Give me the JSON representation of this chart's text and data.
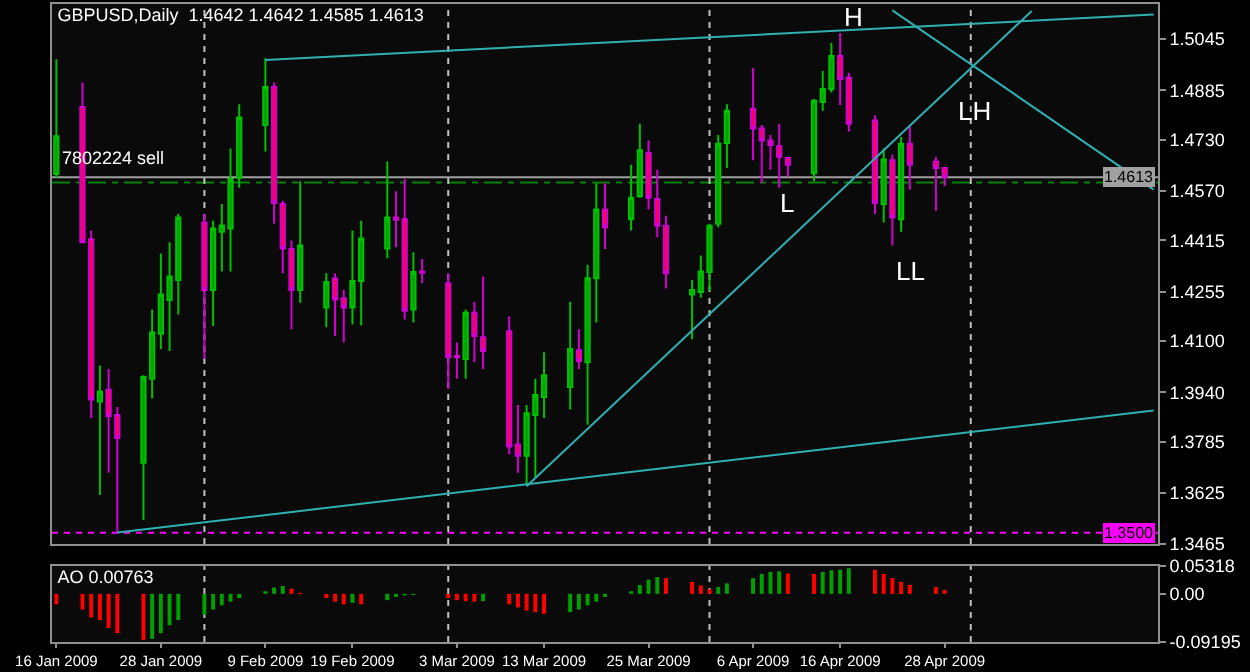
{
  "chart_data": [
    {
      "type": "candlestick",
      "title": "GBPUSD,Daily  1.4642 1.4642 1.4585 1.4613",
      "x": [
        "2009-01-16",
        "2009-01-19",
        "2009-01-20",
        "2009-01-21",
        "2009-01-22",
        "2009-01-23",
        "2009-01-26",
        "2009-01-27",
        "2009-01-28",
        "2009-01-29",
        "2009-01-30",
        "2009-02-02",
        "2009-02-03",
        "2009-02-04",
        "2009-02-05",
        "2009-02-06",
        "2009-02-09",
        "2009-02-10",
        "2009-02-11",
        "2009-02-12",
        "2009-02-13",
        "2009-02-16",
        "2009-02-17",
        "2009-02-18",
        "2009-02-19",
        "2009-02-20",
        "2009-02-23",
        "2009-02-24",
        "2009-02-25",
        "2009-02-26",
        "2009-02-27",
        "2009-03-02",
        "2009-03-03",
        "2009-03-04",
        "2009-03-05",
        "2009-03-06",
        "2009-03-09",
        "2009-03-10",
        "2009-03-11",
        "2009-03-12",
        "2009-03-13",
        "2009-03-16",
        "2009-03-17",
        "2009-03-18",
        "2009-03-19",
        "2009-03-20",
        "2009-03-23",
        "2009-03-24",
        "2009-03-25",
        "2009-03-26",
        "2009-03-27",
        "2009-03-30",
        "2009-03-31",
        "2009-04-01",
        "2009-04-02",
        "2009-04-03",
        "2009-04-06",
        "2009-04-07",
        "2009-04-08",
        "2009-04-09",
        "2009-04-10",
        "2009-04-13",
        "2009-04-14",
        "2009-04-15",
        "2009-04-16",
        "2009-04-17",
        "2009-04-20",
        "2009-04-21",
        "2009-04-22",
        "2009-04-23",
        "2009-04-24",
        "2009-04-27",
        "2009-04-28"
      ],
      "ohlc": [
        [
          1.4623,
          1.4982,
          1.4611,
          1.4741
        ],
        [
          1.4833,
          1.4909,
          1.4407,
          1.4409
        ],
        [
          1.4419,
          1.4446,
          1.3859,
          1.3917
        ],
        [
          1.3911,
          1.4024,
          1.3618,
          1.3942
        ],
        [
          1.3948,
          1.4013,
          1.3688,
          1.3865
        ],
        [
          1.3869,
          1.3894,
          1.3503,
          1.3797
        ],
        [
          1.3719,
          1.3993,
          1.354,
          1.3988
        ],
        [
          1.3982,
          1.4199,
          1.392,
          1.4127
        ],
        [
          1.4123,
          1.4374,
          1.4075,
          1.4246
        ],
        [
          1.4229,
          1.4409,
          1.4069,
          1.4302
        ],
        [
          1.4291,
          1.4498,
          1.4183,
          1.4487
        ],
        [
          1.4471,
          1.4498,
          1.4044,
          1.426
        ],
        [
          1.426,
          1.4477,
          1.4147,
          1.4452
        ],
        [
          1.4442,
          1.4529,
          1.4318,
          1.4462
        ],
        [
          1.4452,
          1.4703,
          1.4318,
          1.4607
        ],
        [
          1.4611,
          1.4841,
          1.458,
          1.48
        ],
        [
          1.4776,
          1.4986,
          1.4693,
          1.4895
        ],
        [
          1.4895,
          1.4909,
          1.4467,
          1.4532
        ],
        [
          1.4529,
          1.4539,
          1.4312,
          1.439
        ],
        [
          1.4388,
          1.4415,
          1.4137,
          1.426
        ],
        [
          1.426,
          1.46,
          1.422,
          1.4399
        ],
        [
          1.4205,
          1.4312,
          1.4143,
          1.4285
        ],
        [
          1.4296,
          1.4312,
          1.4116,
          1.423
        ],
        [
          1.4234,
          1.426,
          1.4096,
          1.4205
        ],
        [
          1.4205,
          1.4446,
          1.4152,
          1.4288
        ],
        [
          1.4288,
          1.4477,
          1.4149,
          1.4421
        ],
        [
          1.439,
          1.4662,
          1.4359,
          1.4487
        ],
        [
          1.4487,
          1.4569,
          1.4394,
          1.448
        ],
        [
          1.4481,
          1.4607,
          1.4168,
          1.4195
        ],
        [
          1.4199,
          1.4378,
          1.4158,
          1.4316
        ],
        [
          1.4318,
          1.4357,
          1.4281,
          1.4314
        ],
        [
          1.4281,
          1.4312,
          1.3951,
          1.405
        ],
        [
          1.4053,
          1.4096,
          1.3982,
          1.405
        ],
        [
          1.4044,
          1.4199,
          1.3982,
          1.4189
        ],
        [
          1.4189,
          1.4223,
          1.4034,
          1.4116
        ],
        [
          1.4112,
          1.4302,
          1.4013,
          1.4069
        ],
        [
          1.4131,
          1.4178,
          1.3746,
          1.377
        ],
        [
          1.3776,
          1.39,
          1.3688,
          1.3741
        ],
        [
          1.3741,
          1.39,
          1.3647,
          1.3874
        ],
        [
          1.3869,
          1.3982,
          1.3673,
          1.3931
        ],
        [
          1.3925,
          1.4065,
          1.3859,
          1.3993
        ],
        [
          1.3956,
          1.4223,
          1.3886,
          1.4075
        ],
        [
          1.4071,
          1.4137,
          1.4013,
          1.4038
        ],
        [
          1.4034,
          1.4339,
          1.3838,
          1.4297
        ],
        [
          1.4297,
          1.4594,
          1.4158,
          1.4512
        ],
        [
          1.4512,
          1.4594,
          1.4388,
          1.4456
        ],
        [
          1.4481,
          1.4652,
          1.4446,
          1.4549
        ],
        [
          1.4553,
          1.478,
          1.4549,
          1.4697
        ],
        [
          1.4689,
          1.4728,
          1.4512,
          1.4549
        ],
        [
          1.4545,
          1.4636,
          1.4425,
          1.4461
        ],
        [
          1.4461,
          1.4492,
          1.4265,
          1.4312
        ],
        [
          1.4246,
          1.4291,
          1.4106,
          1.426
        ],
        [
          1.4254,
          1.4368,
          1.4236,
          1.4318
        ],
        [
          1.4316,
          1.4467,
          1.4257,
          1.4461
        ],
        [
          1.4467,
          1.4745,
          1.4456,
          1.4718
        ],
        [
          1.472,
          1.4841,
          1.4642,
          1.4821
        ],
        [
          1.4827,
          1.4955,
          1.4666,
          1.4765
        ],
        [
          1.4765,
          1.4776,
          1.4594,
          1.4728
        ],
        [
          1.4728,
          1.4745,
          1.4636,
          1.4714
        ],
        [
          1.471,
          1.478,
          1.458,
          1.4677
        ],
        [
          1.4673,
          1.4677,
          1.4615,
          1.4652
        ],
        [
          1.4625,
          1.4858,
          1.46,
          1.4852
        ],
        [
          1.4848,
          1.4945,
          1.4821,
          1.4889
        ],
        [
          1.4889,
          1.5033,
          1.4878,
          1.4992
        ],
        [
          1.4992,
          1.5064,
          1.4838,
          1.492
        ],
        [
          1.4924,
          1.494,
          1.4755,
          1.478
        ],
        [
          1.479,
          1.4807,
          1.4498,
          1.4532
        ],
        [
          1.4529,
          1.4703,
          1.4471,
          1.4668
        ],
        [
          1.4666,
          1.4683,
          1.4399,
          1.4487
        ],
        [
          1.4481,
          1.4739,
          1.4442,
          1.4718
        ],
        [
          1.4718,
          1.4776,
          1.4574,
          1.4652
        ],
        [
          1.4662,
          1.4677,
          1.4508,
          1.4642
        ],
        [
          1.4642,
          1.4642,
          1.4585,
          1.4613
        ]
      ],
      "series": [
        {
          "type": "line",
          "color": "#30b0b0",
          "x": [
            "2009-02-09",
            "2009-05-22"
          ],
          "values": [
            1.498,
            1.5122
          ]
        },
        {
          "type": "line",
          "color": "#30b0b0",
          "x": [
            "2009-01-23",
            "2009-05-22"
          ],
          "values": [
            1.3501,
            1.3883
          ]
        },
        {
          "type": "line",
          "color": "#30b0b0",
          "x": [
            "2009-03-11",
            "2009-05-08"
          ],
          "values": [
            1.3646,
            1.5133
          ]
        },
        {
          "type": "line",
          "color": "#30b0b0",
          "x": [
            "2009-04-22",
            "2009-05-22"
          ],
          "values": [
            1.5135,
            1.4574
          ]
        }
      ],
      "xlim": [
        "2009-01-15T12:00",
        "2009-05-22T12:00"
      ],
      "ylim": [
        1.3465,
        1.5155
      ],
      "yticks": [
        1.5045,
        1.4885,
        {
          "value": 1.473,
          "label": "1.4730"
        },
        {
          "value": 1.457,
          "label": "1.4570"
        },
        1.4415,
        1.4255,
        {
          "value": 1.41,
          "label": "1.4100"
        },
        {
          "value": 1.394,
          "label": "1.3940"
        },
        1.3785,
        1.3625,
        1.3465
      ],
      "tick_labels": "y",
      "ref_lines": [
        {
          "axis": "y",
          "value": 1.4613,
          "label": "1.4613",
          "color": "#a0a0a0",
          "line_style": "solid"
        },
        {
          "axis": "y",
          "value": 1.4596,
          "label": "7802224 sell",
          "color": "#008000",
          "line_style": "dashed"
        },
        {
          "axis": "y",
          "value": 1.35,
          "label": "1.3500",
          "color": "#ff00ff",
          "line_style": "dotted"
        },
        {
          "axis": "x",
          "value": "2009-02-02",
          "color": "#c0c0c0",
          "line_style": "dotted"
        },
        {
          "axis": "x",
          "value": "2009-03-02",
          "color": "#c0c0c0",
          "line_style": "dotted"
        },
        {
          "axis": "x",
          "value": "2009-04-01",
          "color": "#c0c0c0",
          "line_style": "dotted"
        },
        {
          "axis": "x",
          "value": "2009-05-01",
          "color": "#c0c0c0",
          "line_style": "dotted"
        }
      ],
      "annotations": [
        "H",
        "L",
        "LH",
        "LL"
      ]
    },
    {
      "type": "bar",
      "title": "AO 0.00763",
      "x": [
        "2009-01-16",
        "2009-01-19",
        "2009-01-20",
        "2009-01-21",
        "2009-01-22",
        "2009-01-23",
        "2009-01-26",
        "2009-01-27",
        "2009-01-28",
        "2009-01-29",
        "2009-01-30",
        "2009-02-02",
        "2009-02-03",
        "2009-02-04",
        "2009-02-05",
        "2009-02-06",
        "2009-02-09",
        "2009-02-10",
        "2009-02-11",
        "2009-02-12",
        "2009-02-13",
        "2009-02-16",
        "2009-02-17",
        "2009-02-18",
        "2009-02-19",
        "2009-02-20",
        "2009-02-23",
        "2009-02-24",
        "2009-02-25",
        "2009-02-26",
        "2009-02-27",
        "2009-03-02",
        "2009-03-03",
        "2009-03-04",
        "2009-03-05",
        "2009-03-06",
        "2009-03-09",
        "2009-03-10",
        "2009-03-11",
        "2009-03-12",
        "2009-03-13",
        "2009-03-16",
        "2009-03-17",
        "2009-03-18",
        "2009-03-19",
        "2009-03-20",
        "2009-03-23",
        "2009-03-24",
        "2009-03-25",
        "2009-03-26",
        "2009-03-27",
        "2009-03-30",
        "2009-03-31",
        "2009-04-01",
        "2009-04-02",
        "2009-04-03",
        "2009-04-06",
        "2009-04-07",
        "2009-04-08",
        "2009-04-09",
        "2009-04-10",
        "2009-04-13",
        "2009-04-14",
        "2009-04-15",
        "2009-04-16",
        "2009-04-17",
        "2009-04-20",
        "2009-04-21",
        "2009-04-22",
        "2009-04-23",
        "2009-04-24",
        "2009-04-27",
        "2009-04-28"
      ],
      "values": [
        -0.02,
        -0.03,
        -0.045,
        -0.05,
        -0.065,
        -0.075,
        -0.088,
        -0.086,
        -0.075,
        -0.06,
        -0.05,
        -0.04,
        -0.03,
        -0.022,
        -0.015,
        -0.008,
        0.005,
        0.012,
        0.015,
        0.01,
        0.002,
        -0.008,
        -0.015,
        -0.02,
        -0.017,
        -0.02,
        -0.012,
        -0.006,
        -0.003,
        -0.002,
        null,
        -0.008,
        -0.012,
        -0.014,
        -0.015,
        -0.014,
        -0.02,
        -0.026,
        -0.032,
        -0.035,
        -0.038,
        -0.035,
        -0.03,
        -0.022,
        -0.015,
        -0.006,
        0.005,
        0.017,
        0.027,
        0.032,
        0.03,
        0.023,
        0.016,
        0.009,
        0.013,
        0.02,
        0.03,
        0.038,
        0.042,
        0.043,
        0.039,
        0.038,
        0.042,
        0.045,
        0.046,
        0.049,
        0.046,
        0.038,
        0.03,
        0.023,
        0.017,
        0.013,
        0.00763
      ],
      "colors": [
        "#ff0000",
        "#ff0000",
        "#ff0000",
        "#ff0000",
        "#ff0000",
        "#ff0000",
        "#ff0000",
        "#00a000",
        "#00a000",
        "#00a000",
        "#00a000",
        "#00a000",
        "#00a000",
        "#00a000",
        "#00a000",
        "#00a000",
        "#00a000",
        "#00a000",
        "#00a000",
        "#ff0000",
        "#ff0000",
        "#ff0000",
        "#ff0000",
        "#ff0000",
        "#00a000",
        "#ff0000",
        "#00a000",
        "#00a000",
        "#00a000",
        "#00a000",
        "#00a000",
        "#ff0000",
        "#ff0000",
        "#ff0000",
        "#ff0000",
        "#00a000",
        "#ff0000",
        "#ff0000",
        "#ff0000",
        "#ff0000",
        "#ff0000",
        "#00a000",
        "#00a000",
        "#00a000",
        "#00a000",
        "#00a000",
        "#00a000",
        "#00a000",
        "#00a000",
        "#00a000",
        "#ff0000",
        "#ff0000",
        "#ff0000",
        "#ff0000",
        "#00a000",
        "#00a000",
        "#00a000",
        "#00a000",
        "#00a000",
        "#00a000",
        "#ff0000",
        "#ff0000",
        "#00a000",
        "#00a000",
        "#00a000",
        "#00a000",
        "#ff0000",
        "#ff0000",
        "#ff0000",
        "#ff0000",
        "#ff0000",
        "#ff0000",
        "#ff0000"
      ],
      "xlim": [
        "2009-01-15T12:00",
        "2009-05-22T12:00"
      ],
      "xticks": [
        {
          "value": "2009-01-16",
          "label": "16 Jan 2009"
        },
        {
          "value": "2009-01-28",
          "label": "28 Jan 2009"
        },
        {
          "value": "2009-02-09",
          "label": "9 Feb 2009"
        },
        {
          "value": "2009-02-19",
          "label": "19 Feb 2009"
        },
        {
          "value": "2009-03-03",
          "label": "3 Mar 2009"
        },
        {
          "value": "2009-03-13",
          "label": "13 Mar 2009"
        },
        {
          "value": "2009-03-25",
          "label": "25 Mar 2009"
        },
        {
          "value": "2009-04-06",
          "label": "6 Apr 2009"
        },
        {
          "value": "2009-04-16",
          "label": "16 Apr 2009"
        },
        {
          "value": "2009-04-28",
          "label": "28 Apr 2009"
        }
      ],
      "ylim": [
        -0.09195,
        0.05318
      ],
      "yticks": [
        0.05318,
        {
          "value": 0,
          "label": "0.00"
        },
        -0.09195
      ],
      "ref_lines": [
        {
          "axis": "x",
          "value": "2009-02-02",
          "color": "#c0c0c0",
          "line_style": "dotted"
        },
        {
          "axis": "x",
          "value": "2009-03-02",
          "color": "#c0c0c0",
          "line_style": "dotted"
        },
        {
          "axis": "x",
          "value": "2009-04-01",
          "color": "#c0c0c0",
          "line_style": "dotted"
        },
        {
          "axis": "x",
          "value": "2009-05-01",
          "color": "#c0c0c0",
          "line_style": "dotted"
        }
      ]
    }
  ]
}
